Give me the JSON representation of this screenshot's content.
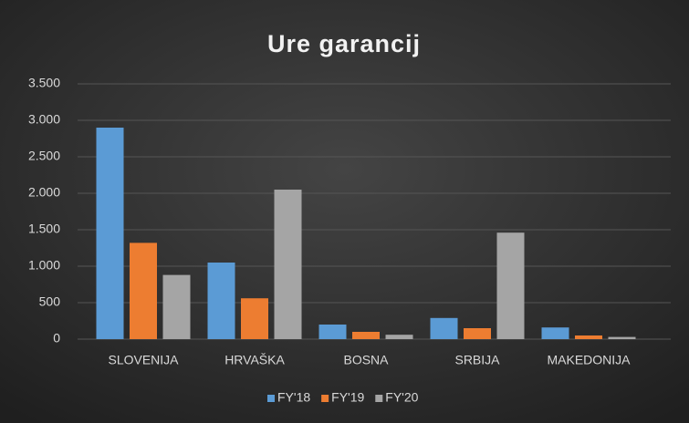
{
  "chart_data": {
    "type": "bar",
    "title": "Ure garancij",
    "categories": [
      "SLOVENIJA",
      "HRVAŠKA",
      "BOSNA",
      "SRBIJA",
      "MAKEDONIJA"
    ],
    "series": [
      {
        "name": "FY'18",
        "color": "#5b9bd5",
        "values": [
          2900,
          1050,
          200,
          290,
          160
        ]
      },
      {
        "name": "FY'19",
        "color": "#ed7d31",
        "values": [
          1320,
          560,
          100,
          150,
          50
        ]
      },
      {
        "name": "FY'20",
        "color": "#a5a5a5",
        "values": [
          880,
          2050,
          60,
          1460,
          30
        ]
      }
    ],
    "ylim": [
      0,
      3500
    ],
    "yticks": [
      0,
      500,
      {
        "value": 1000,
        "label": "1.000"
      },
      {
        "value": 1500,
        "label": "1.500"
      },
      {
        "value": 2000,
        "label": "2.000"
      },
      {
        "value": 2500,
        "label": "2.500"
      },
      {
        "value": 3000,
        "label": "3.000"
      },
      {
        "value": 3500,
        "label": "3.500"
      }
    ],
    "grid": true,
    "legend": "bottom"
  }
}
